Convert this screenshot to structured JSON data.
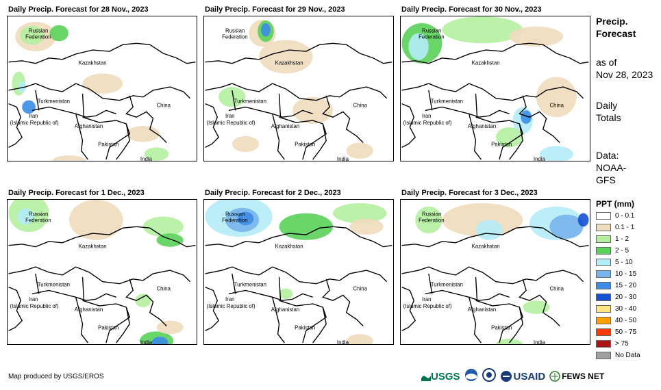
{
  "panels": [
    {
      "title": "Daily Precip. Forecast for 28 Nov., 2023"
    },
    {
      "title": "Daily Precip. Forecast for 29 Nov., 2023"
    },
    {
      "title": "Daily Precip. Forecast for 30 Nov., 2023"
    },
    {
      "title": "Daily Precip. Forecast for 1 Dec., 2023"
    },
    {
      "title": "Daily Precip. Forecast for 2 Dec., 2023"
    },
    {
      "title": "Daily Precip. Forecast for 3 Dec., 2023"
    }
  ],
  "map_labels": {
    "russia_1": "Russian",
    "russia_2": "Federation",
    "kazakhstan": "Kazakhstan",
    "turkmenistan": "Turkmenistan",
    "iran_1": "Iran",
    "iran_2": "(Islamic Republic of)",
    "afghanistan": "Afghanistan",
    "pakistan": "Pakistan",
    "india": "India",
    "china": "China"
  },
  "sidebar": {
    "title_1": "Precip.",
    "title_2": "Forecast",
    "asof_1": "as of",
    "asof_2": "Nov 28, 2023",
    "daily_1": "Daily",
    "daily_2": "Totals",
    "data_1": "Data:",
    "data_2": "NOAA-",
    "data_3": "GFS"
  },
  "legend": {
    "title": "PPT (mm)",
    "items": [
      {
        "label": "0 - 0.1",
        "color": "#ffffff"
      },
      {
        "label": "0.1 - 1",
        "color": "#f0dcbe"
      },
      {
        "label": "1 - 2",
        "color": "#b4f0a0"
      },
      {
        "label": "2 - 5",
        "color": "#5ad25a"
      },
      {
        "label": "5 - 10",
        "color": "#b4ecf8"
      },
      {
        "label": "10 - 15",
        "color": "#78b4ec"
      },
      {
        "label": "15 - 20",
        "color": "#3c8ce6"
      },
      {
        "label": "20 - 30",
        "color": "#1450d2"
      },
      {
        "label": "30 - 40",
        "color": "#ffe682"
      },
      {
        "label": "40 - 50",
        "color": "#ffa000"
      },
      {
        "label": "50 - 75",
        "color": "#ff3c00"
      },
      {
        "label": "> 75",
        "color": "#aa1414"
      },
      {
        "label": "No Data",
        "color": "#a0a0a0"
      }
    ]
  },
  "footer": {
    "credit": "Map produced by USGS/EROS"
  },
  "logos": {
    "usgs": "USGS",
    "usaid": "USAID",
    "fewsnet": "FEWS NET"
  }
}
